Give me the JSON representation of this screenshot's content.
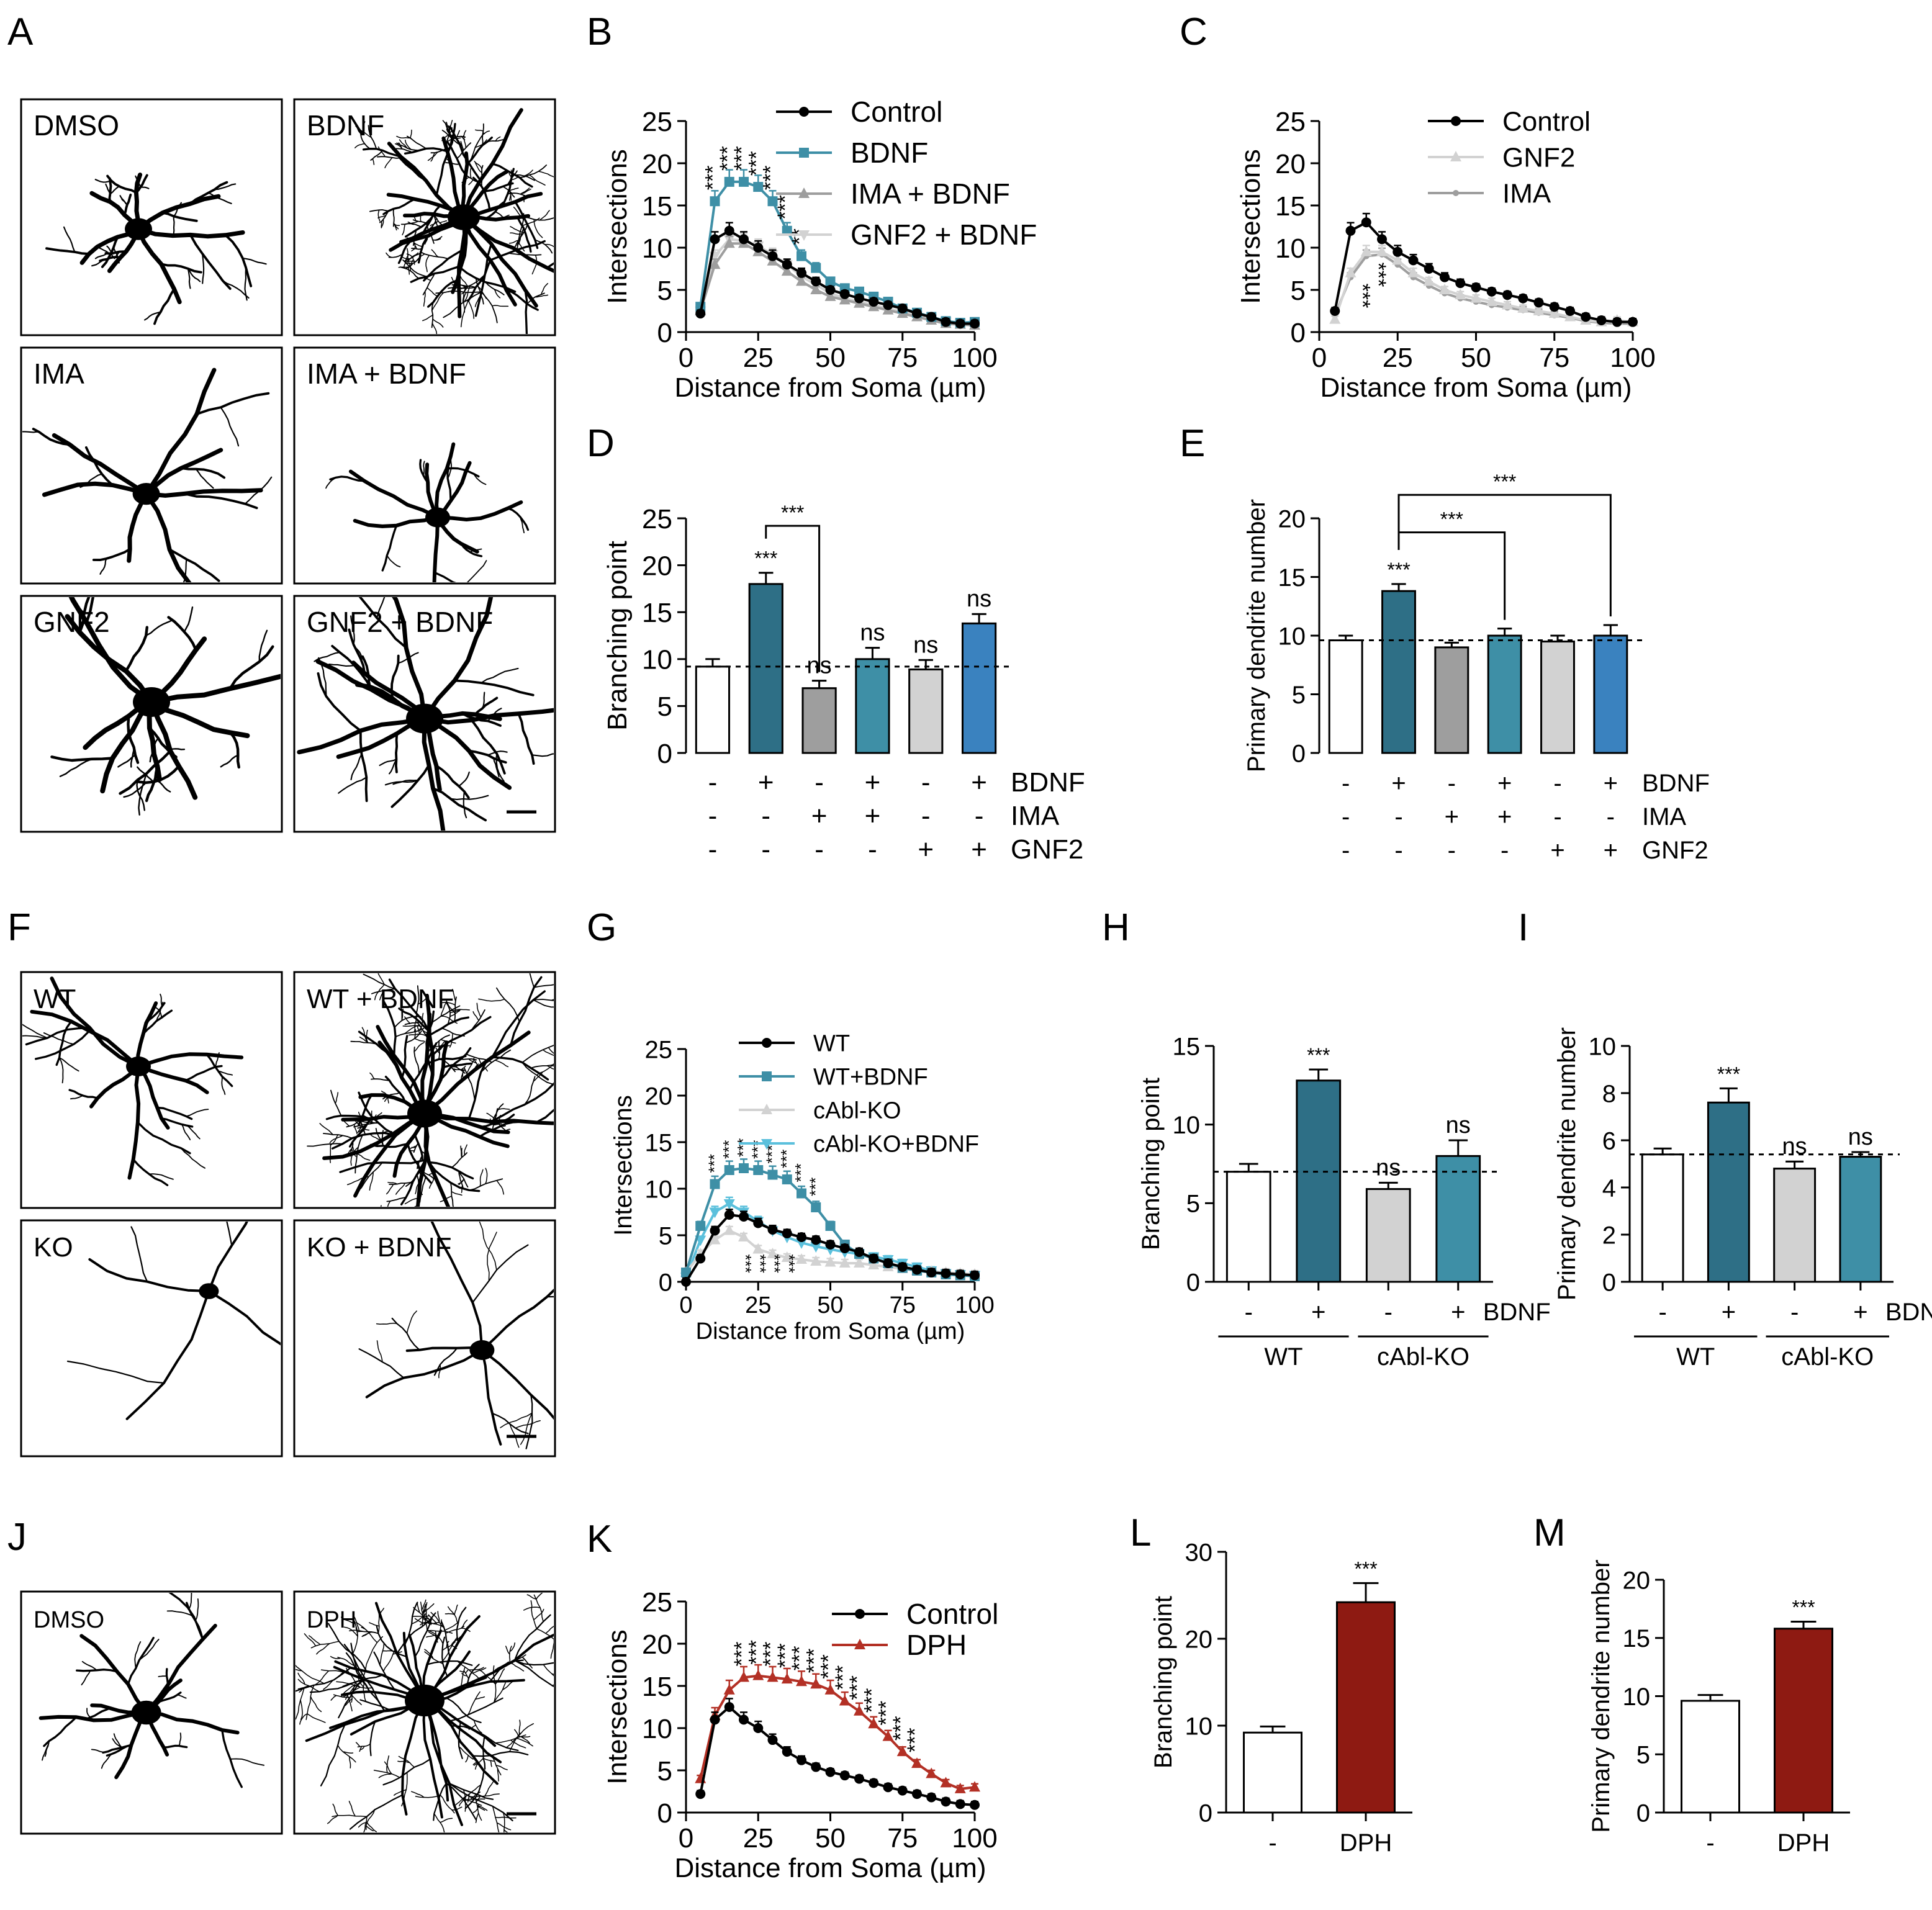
{
  "panels": {
    "A": {
      "letter": "A",
      "images": [
        "DMSO",
        "BDNF",
        "IMA",
        "IMA + BDNF",
        "GNF2",
        "GNF2 + BDNF"
      ]
    },
    "F": {
      "letter": "F",
      "images": [
        "WT",
        "WT + BDNF",
        "KO",
        "KO + BDNF"
      ]
    },
    "J": {
      "letter": "J",
      "images": [
        "DMSO",
        "DPH"
      ]
    }
  },
  "colors": {
    "black": "#000000",
    "teal": "#3e8fa6",
    "dark_teal": "#2e6f86",
    "gray": "#9e9e9e",
    "light_gray": "#d2d2d2",
    "light_blue": "#5bc0dc",
    "blue": "#3a82bf",
    "mid_gray": "#8a8a8a",
    "dark_red": "#8e1a12",
    "red": "#b33025"
  },
  "chart_data": [
    {
      "id": "B",
      "letter": "B",
      "type": "line",
      "xlabel": "Distance from Soma (µm)",
      "ylabel": "Intersections",
      "xlim": [
        0,
        100
      ],
      "ylim": [
        0,
        25
      ],
      "xticks": [
        0,
        25,
        50,
        75,
        100
      ],
      "yticks": [
        0,
        5,
        10,
        15,
        20,
        25
      ],
      "x": [
        5,
        10,
        15,
        20,
        25,
        30,
        35,
        40,
        45,
        50,
        55,
        60,
        65,
        70,
        75,
        80,
        85,
        90,
        95,
        100
      ],
      "series": [
        {
          "name": "Control",
          "color": "#000000",
          "marker": "circle",
          "values": [
            2.2,
            11,
            12,
            11,
            10,
            9,
            8,
            7,
            6,
            5,
            4.5,
            4,
            3.6,
            3.2,
            2.8,
            2.2,
            1.8,
            1.2,
            1,
            1
          ]
        },
        {
          "name": "BDNF",
          "color": "#3e8fa6",
          "marker": "square",
          "values": [
            3,
            15.5,
            17.8,
            17.8,
            17.2,
            15.5,
            12,
            9,
            7.6,
            6,
            5.2,
            4.8,
            4.2,
            3.6,
            2.8,
            2.3,
            1.8,
            1.3,
            1.1,
            1.2
          ]
        },
        {
          "name": "IMA + BDNF",
          "color": "#9e9e9e",
          "marker": "triangle-up",
          "values": [
            2.5,
            8,
            10.5,
            10.5,
            9.5,
            8.4,
            7.2,
            6,
            5,
            4.2,
            3.8,
            3.4,
            3,
            2.6,
            2.2,
            1.8,
            1.4,
            1,
            0.9,
            0.8
          ]
        },
        {
          "name": "GNF2 + BDNF",
          "color": "#d2d2d2",
          "marker": "triangle-down",
          "values": [
            2.5,
            9,
            11,
            10.8,
            10.2,
            9.2,
            8,
            6.6,
            5.6,
            4.6,
            4,
            3.6,
            3.2,
            2.8,
            2.4,
            2,
            1.6,
            1.2,
            1,
            0.9
          ]
        }
      ],
      "sig": [
        {
          "x": 10,
          "label": "***"
        },
        {
          "x": 15,
          "label": "***"
        },
        {
          "x": 20,
          "label": "***"
        },
        {
          "x": 25,
          "label": "***"
        },
        {
          "x": 30,
          "label": "***"
        },
        {
          "x": 35,
          "label": "***"
        },
        {
          "x": 40,
          "label": "**"
        }
      ],
      "sig_position": "above"
    },
    {
      "id": "C",
      "letter": "C",
      "type": "line",
      "xlabel": "Distance from Soma (µm)",
      "ylabel": "Intersections",
      "xlim": [
        0,
        100
      ],
      "ylim": [
        0,
        25
      ],
      "xticks": [
        0,
        25,
        50,
        75,
        100
      ],
      "yticks": [
        0,
        5,
        10,
        15,
        20,
        25
      ],
      "x": [
        5,
        10,
        15,
        20,
        25,
        30,
        35,
        40,
        45,
        50,
        55,
        60,
        65,
        70,
        75,
        80,
        85,
        90,
        95,
        100
      ],
      "series": [
        {
          "name": "Control",
          "color": "#000000",
          "marker": "circle",
          "values": [
            2.5,
            12,
            13,
            11,
            9.5,
            8.5,
            7.5,
            6.5,
            5.8,
            5.3,
            4.8,
            4.4,
            4,
            3.5,
            3,
            2.5,
            1.8,
            1.4,
            1.2,
            1.2
          ]
        },
        {
          "name": "GNF2",
          "color": "#d2d2d2",
          "marker": "triangle-up",
          "values": [
            1.5,
            7,
            9.5,
            9.5,
            8.5,
            7,
            6,
            5,
            4.4,
            4,
            3.6,
            3.2,
            2.8,
            2.5,
            2.2,
            1.8,
            1.4,
            1.2,
            1.4,
            1.2
          ]
        },
        {
          "name": "IMA",
          "color": "#9e9e9e",
          "marker": "circle-small",
          "values": [
            2,
            6.5,
            9,
            9.2,
            8,
            6.5,
            5.5,
            4.6,
            4,
            3.6,
            3.2,
            2.9,
            2.6,
            2.3,
            2,
            1.7,
            1.3,
            1.1,
            1,
            1
          ]
        }
      ],
      "sig": [
        {
          "x": 10,
          "label": "***"
        },
        {
          "x": 15,
          "label": "***"
        }
      ],
      "sig_position": "below-vertical"
    },
    {
      "id": "D",
      "letter": "D",
      "type": "bar",
      "ylabel": "Branching point",
      "ylim": [
        0,
        25
      ],
      "yticks": [
        0,
        5,
        10,
        15,
        20,
        25
      ],
      "values": [
        9.2,
        18,
        6.9,
        10,
        8.9,
        13.8
      ],
      "errors": [
        0.8,
        1.2,
        0.8,
        1.2,
        1.0,
        1.0
      ],
      "colors": [
        "#ffffff",
        "#2e6f86",
        "#9e9e9e",
        "#3e8fa6",
        "#d2d2d2",
        "#3a82bf"
      ],
      "bar_labels": [
        "",
        "***",
        "ns",
        "ns",
        "ns",
        "ns"
      ],
      "ref_line": 9.2,
      "brackets": [
        {
          "from": 1,
          "to": 2,
          "label": "***"
        }
      ],
      "factor_rows": [
        {
          "name": "BDNF",
          "signs": [
            "-",
            "+",
            "-",
            "+",
            "-",
            "+"
          ]
        },
        {
          "name": "IMA",
          "signs": [
            "-",
            "-",
            "+",
            "+",
            "-",
            "-"
          ]
        },
        {
          "name": "GNF2",
          "signs": [
            "-",
            "-",
            "-",
            "-",
            "+",
            "+"
          ]
        }
      ]
    },
    {
      "id": "E",
      "letter": "E",
      "type": "bar",
      "ylabel": "Primary dendrite number",
      "ylim": [
        0,
        20
      ],
      "yticks": [
        0,
        5,
        10,
        15,
        20
      ],
      "values": [
        9.6,
        13.8,
        9.0,
        10.0,
        9.5,
        10.0
      ],
      "errors": [
        0.4,
        0.6,
        0.4,
        0.6,
        0.5,
        0.9
      ],
      "colors": [
        "#ffffff",
        "#2e6f86",
        "#9e9e9e",
        "#3e8fa6",
        "#d2d2d2",
        "#3a82bf"
      ],
      "bar_labels": [
        "",
        "***",
        "",
        "",
        "",
        ""
      ],
      "ref_line": 9.6,
      "brackets": [
        {
          "from": 1,
          "to": 3,
          "label": "***"
        },
        {
          "from": 1,
          "to": 5,
          "label": "***"
        }
      ],
      "factor_rows": [
        {
          "name": "BDNF",
          "signs": [
            "-",
            "+",
            "-",
            "+",
            "-",
            "+"
          ]
        },
        {
          "name": "IMA",
          "signs": [
            "-",
            "-",
            "+",
            "+",
            "-",
            "-"
          ]
        },
        {
          "name": "GNF2",
          "signs": [
            "-",
            "-",
            "-",
            "-",
            "+",
            "+"
          ]
        }
      ]
    },
    {
      "id": "G",
      "letter": "G",
      "type": "line",
      "xlabel": "Distance from Soma (µm)",
      "ylabel": "Intersections",
      "xlim": [
        0,
        100
      ],
      "ylim": [
        0,
        25
      ],
      "xticks": [
        0,
        25,
        50,
        75,
        100
      ],
      "yticks": [
        0,
        5,
        10,
        15,
        20,
        25
      ],
      "x": [
        0,
        5,
        10,
        15,
        20,
        25,
        30,
        35,
        40,
        45,
        50,
        55,
        60,
        65,
        70,
        75,
        80,
        85,
        90,
        95,
        100
      ],
      "series": [
        {
          "name": "WT",
          "color": "#000000",
          "marker": "circle",
          "values": [
            0,
            2.5,
            5.5,
            7.2,
            7,
            6.3,
            5.6,
            5.2,
            4.8,
            4.5,
            4,
            3.6,
            3.2,
            2.5,
            2,
            1.6,
            1.3,
            1,
            0.9,
            0.8,
            0.7
          ]
        },
        {
          "name": "WT+BDNF",
          "color": "#3e8fa6",
          "marker": "square",
          "values": [
            1,
            6,
            10.5,
            12,
            12.2,
            12,
            11.5,
            11,
            9.5,
            8,
            6,
            4,
            3,
            2.5,
            2,
            1.5,
            1.2,
            1,
            0.8,
            0.7,
            0.6
          ]
        },
        {
          "name": "cAbl-KO",
          "color": "#d2d2d2",
          "marker": "triangle-up",
          "values": [
            1,
            3,
            4.5,
            5.5,
            4.8,
            3.5,
            3,
            2.6,
            2.4,
            2.2,
            2.1,
            2,
            2,
            1.8,
            1.6,
            1.4,
            1.2,
            1.1,
            1,
            0.9,
            0.8
          ]
        },
        {
          "name": "cAbl-KO+BDNF",
          "color": "#5bc0dc",
          "marker": "triangle-down",
          "values": [
            0.5,
            4.5,
            7.5,
            8.4,
            7.5,
            6.5,
            5.5,
            4.8,
            4.2,
            3.8,
            3.5,
            3.2,
            3,
            2.7,
            2.4,
            2,
            1.6,
            1.2,
            0.9,
            0.8,
            0.7
          ]
        }
      ],
      "sig": [
        {
          "x": 10,
          "label": "***"
        },
        {
          "x": 15,
          "label": "***"
        },
        {
          "x": 20,
          "label": "***"
        },
        {
          "x": 25,
          "label": "***"
        },
        {
          "x": 30,
          "label": "***"
        },
        {
          "x": 35,
          "label": "***"
        },
        {
          "x": 40,
          "label": "***"
        },
        {
          "x": 45,
          "label": "***"
        }
      ],
      "sig_position": "above-small",
      "sig_low": [
        {
          "x": 20,
          "label": "***"
        },
        {
          "x": 25,
          "label": "***"
        },
        {
          "x": 30,
          "label": "***"
        },
        {
          "x": 35,
          "label": "***"
        }
      ]
    },
    {
      "id": "H",
      "letter": "H",
      "type": "bar",
      "ylabel": "Branching point",
      "ylim": [
        0,
        15
      ],
      "yticks": [
        0,
        5,
        10,
        15
      ],
      "values": [
        7,
        12.8,
        5.9,
        8
      ],
      "errors": [
        0.5,
        0.7,
        0.4,
        1.0
      ],
      "colors": [
        "#ffffff",
        "#2e6f86",
        "#d2d2d2",
        "#3e8fa6"
      ],
      "bar_labels": [
        "",
        "***",
        "ns",
        "ns"
      ],
      "ref_line": 7,
      "signs": [
        "-",
        "+",
        "-",
        "+"
      ],
      "factor": "BDNF",
      "groups": [
        "WT",
        "cAbl-KO"
      ]
    },
    {
      "id": "I",
      "letter": "I",
      "type": "bar",
      "ylabel": "Primary dendrite number",
      "ylim": [
        0,
        10
      ],
      "yticks": [
        0,
        2,
        4,
        6,
        8,
        10
      ],
      "values": [
        5.4,
        7.6,
        4.8,
        5.3
      ],
      "errors": [
        0.25,
        0.6,
        0.3,
        0.2
      ],
      "colors": [
        "#ffffff",
        "#2e6f86",
        "#d2d2d2",
        "#3e8fa6"
      ],
      "bar_labels": [
        "",
        "***",
        "ns",
        "ns"
      ],
      "ref_line": 5.4,
      "signs": [
        "-",
        "+",
        "-",
        "+"
      ],
      "factor": "BDNF",
      "groups": [
        "WT",
        "cAbl-KO"
      ]
    },
    {
      "id": "K",
      "letter": "K",
      "type": "line",
      "xlabel": "Distance from Soma (µm)",
      "ylabel": "Intersections",
      "xlim": [
        0,
        100
      ],
      "ylim": [
        0,
        25
      ],
      "xticks": [
        0,
        25,
        50,
        75,
        100
      ],
      "yticks": [
        0,
        5,
        10,
        15,
        20,
        25
      ],
      "x": [
        5,
        10,
        15,
        20,
        25,
        30,
        35,
        40,
        45,
        50,
        55,
        60,
        65,
        70,
        75,
        80,
        85,
        90,
        95,
        100
      ],
      "series": [
        {
          "name": "Control",
          "color": "#000000",
          "marker": "circle",
          "values": [
            2.2,
            11,
            12.5,
            11,
            10,
            8.6,
            7.2,
            6.2,
            5.4,
            4.8,
            4.4,
            4,
            3.5,
            3,
            2.6,
            2.2,
            1.8,
            1.3,
            1,
            0.9
          ]
        },
        {
          "name": "DPH",
          "color": "#b33025",
          "marker": "triangle-up",
          "values": [
            4,
            11.5,
            14.5,
            16,
            16.2,
            16,
            15.8,
            15.5,
            15.2,
            14.5,
            13.2,
            12,
            10.5,
            9,
            7.2,
            5.8,
            4.6,
            3.5,
            2.8,
            3
          ]
        }
      ],
      "sig": [
        {
          "x": 20,
          "label": "***"
        },
        {
          "x": 25,
          "label": "***"
        },
        {
          "x": 30,
          "label": "***"
        },
        {
          "x": 35,
          "label": "***"
        },
        {
          "x": 40,
          "label": "***"
        },
        {
          "x": 45,
          "label": "***"
        },
        {
          "x": 50,
          "label": "***"
        },
        {
          "x": 55,
          "label": "***"
        },
        {
          "x": 60,
          "label": "***"
        },
        {
          "x": 65,
          "label": "***"
        },
        {
          "x": 70,
          "label": "***"
        },
        {
          "x": 75,
          "label": "***"
        },
        {
          "x": 80,
          "label": "***"
        }
      ],
      "sig_position": "above"
    },
    {
      "id": "L",
      "letter": "L",
      "type": "bar",
      "ylabel": "Branching point",
      "ylim": [
        0,
        30
      ],
      "yticks": [
        0,
        10,
        20,
        30
      ],
      "values": [
        9.2,
        24.2
      ],
      "errors": [
        0.7,
        2.2
      ],
      "colors": [
        "#ffffff",
        "#8e1a12"
      ],
      "bar_labels": [
        "",
        "***"
      ],
      "categories": [
        "-",
        "DPH"
      ]
    },
    {
      "id": "M",
      "letter": "M",
      "type": "bar",
      "ylabel": "Primary dendrite number",
      "ylim": [
        0,
        20
      ],
      "yticks": [
        0,
        5,
        10,
        15,
        20
      ],
      "values": [
        9.6,
        15.8
      ],
      "errors": [
        0.5,
        0.6
      ],
      "colors": [
        "#ffffff",
        "#8e1a12"
      ],
      "bar_labels": [
        "",
        "***"
      ],
      "categories": [
        "-",
        "DPH"
      ]
    }
  ]
}
